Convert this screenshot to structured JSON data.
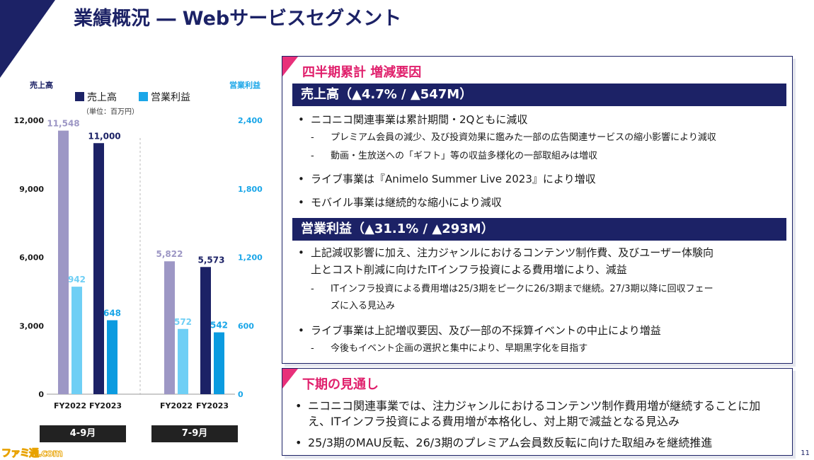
{
  "title": "業績概況 ― Webサービスセグメント",
  "chart_data": {
    "type": "bar",
    "left_axis_label": "売上高",
    "right_axis_label": "営業利益",
    "unit_note": "（単位：百万円）",
    "left_ticks": [
      "12,000",
      "9,000",
      "6,000",
      "3,000",
      "0"
    ],
    "right_ticks": [
      "2,400",
      "1,800",
      "1,200",
      "600",
      "0"
    ],
    "left_ylim": [
      0,
      12000
    ],
    "right_ylim": [
      0,
      2400
    ],
    "legend": [
      {
        "name": "売上高",
        "color": "#1c2266"
      },
      {
        "name": "営業利益",
        "color": "#1aa6e8"
      }
    ],
    "groups": [
      {
        "period": "4-9月",
        "categories": [
          "FY2022",
          "FY2023"
        ],
        "sales": [
          11548,
          11000
        ],
        "sales_labels": [
          "11,548",
          "11,000"
        ],
        "profit": [
          942,
          648
        ],
        "profit_labels": [
          "942",
          "648"
        ]
      },
      {
        "period": "7-9月",
        "categories": [
          "FY2022",
          "FY2023"
        ],
        "sales": [
          5822,
          5573
        ],
        "sales_labels": [
          "5,822",
          "5,573"
        ],
        "profit": [
          572,
          542
        ],
        "profit_labels": [
          "572",
          "542"
        ]
      }
    ],
    "colors": {
      "sales_prev": "#9d97c5",
      "sales_curr": "#1c2266",
      "profit_prev": "#6fcff5",
      "profit_curr": "#0b9be0",
      "label_prev_sales": "#9d97c5",
      "label_prev_profit": "#6fcff5",
      "axis_text": "#1c2266"
    }
  },
  "panel1": {
    "heading": "四半期累計 増減要因",
    "sales_header": "売上高（▲4.7% / ▲547M）",
    "sales_points": [
      {
        "text": "ニコニコ関連事業は累計期間・2Qともに減収",
        "subs": [
          "プレミアム会員の減少、及び投資効果に鑑みた一部の広告関連サービスの縮小影響により減収",
          "動画・生放送への「ギフト」等の収益多様化の一部取組みは増収"
        ]
      },
      {
        "text": "ライブ事業は『Animelo Summer Live 2023』により増収",
        "subs": []
      },
      {
        "text": "モバイル事業は継続的な縮小により減収",
        "subs": []
      }
    ],
    "profit_header": "営業利益（▲31.1% / ▲293M）",
    "profit_points": [
      {
        "line1": "上記減収影響に加え、注力ジャンルにおけるコンテンツ制作費、及びユーザー体験向",
        "line2": "上とコスト削減に向けたITインフラ投資による費用増により、減益",
        "sub1": "ITインフラ投資による費用増は25/3期をピークに26/3期まで継続。27/3期以降に回収フェー",
        "sub2": "ズに入る見込み"
      },
      {
        "line1": "ライブ事業は上記増収要因、及び一部の不採算イベントの中止により増益",
        "sub1": "今後もイベント企画の選択と集中により、早期黒字化を目指す"
      }
    ]
  },
  "panel2": {
    "heading": "下期の見通し",
    "points": [
      {
        "line1": "ニコニコ関連事業では、注力ジャンルにおけるコンテンツ制作費用増が継続することに加",
        "line2": "え、ITインフラ投資による費用増が本格化し、対上期で減益となる見込み"
      },
      {
        "line1": "25/3期のMAU反転、26/3期のプレミアム会員数反転に向けた取組みを継続推進"
      }
    ]
  },
  "page_number": "11",
  "bullet": "•",
  "dash": "-",
  "watermark": "ファミ通.com"
}
